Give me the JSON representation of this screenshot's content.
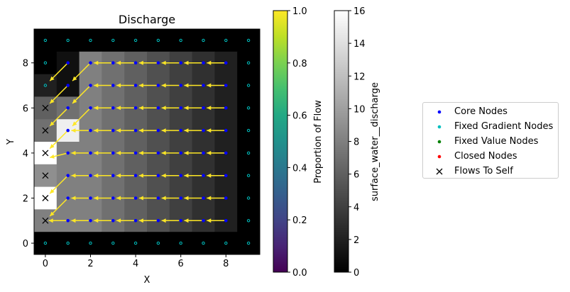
{
  "chart_data": {
    "type": "heatmap",
    "title": "Discharge",
    "xlabel": "X",
    "ylabel": "Y",
    "xticks": [
      0,
      2,
      4,
      6,
      8
    ],
    "yticks": [
      0,
      2,
      4,
      6,
      8
    ],
    "xlim": [
      -0.5,
      9.5
    ],
    "ylim": [
      -0.5,
      9.5
    ],
    "grid": false,
    "legend_position": "right",
    "nrows": 10,
    "ncols": 10,
    "grid_values_row0_is_y9": [
      [
        0,
        0,
        0,
        0,
        0,
        0,
        0,
        0,
        0,
        0
      ],
      [
        0,
        1,
        8,
        7,
        6,
        5,
        4,
        3,
        2,
        0
      ],
      [
        2,
        1,
        8,
        7,
        6,
        5,
        4,
        3,
        2,
        0
      ],
      [
        6,
        7,
        8,
        7,
        6,
        5,
        4,
        3,
        2,
        0
      ],
      [
        7,
        15,
        8,
        7,
        6,
        5,
        4,
        3,
        2,
        0
      ],
      [
        16,
        8,
        8,
        7,
        6,
        5,
        4,
        3,
        2,
        0
      ],
      [
        9,
        8,
        8,
        7,
        6,
        5,
        4,
        3,
        2,
        0
      ],
      [
        16,
        8,
        8,
        7,
        6,
        5,
        4,
        3,
        2,
        0
      ],
      [
        8,
        8,
        8,
        7,
        6,
        5,
        4,
        3,
        2,
        0
      ],
      [
        0,
        0,
        0,
        0,
        0,
        0,
        0,
        0,
        0,
        0
      ]
    ],
    "series": [
      {
        "name": "Core Nodes",
        "color": "#0000ff",
        "marker": "dot"
      },
      {
        "name": "Fixed Gradient Nodes",
        "color": "#00bfbf",
        "marker": "dot"
      },
      {
        "name": "Fixed Value Nodes",
        "color": "#008000",
        "marker": "dot"
      },
      {
        "name": "Closed Nodes",
        "color": "#ff0000",
        "marker": "dot"
      },
      {
        "name": "Flows To Self",
        "color": "#000000",
        "marker": "x"
      }
    ],
    "core_nodes": [
      [
        1,
        1
      ],
      [
        2,
        1
      ],
      [
        3,
        1
      ],
      [
        4,
        1
      ],
      [
        5,
        1
      ],
      [
        6,
        1
      ],
      [
        7,
        1
      ],
      [
        8,
        1
      ],
      [
        1,
        2
      ],
      [
        2,
        2
      ],
      [
        3,
        2
      ],
      [
        4,
        2
      ],
      [
        5,
        2
      ],
      [
        6,
        2
      ],
      [
        7,
        2
      ],
      [
        8,
        2
      ],
      [
        1,
        3
      ],
      [
        2,
        3
      ],
      [
        3,
        3
      ],
      [
        4,
        3
      ],
      [
        5,
        3
      ],
      [
        6,
        3
      ],
      [
        7,
        3
      ],
      [
        8,
        3
      ],
      [
        1,
        4
      ],
      [
        2,
        4
      ],
      [
        3,
        4
      ],
      [
        4,
        4
      ],
      [
        5,
        4
      ],
      [
        6,
        4
      ],
      [
        7,
        4
      ],
      [
        8,
        4
      ],
      [
        1,
        5
      ],
      [
        2,
        5
      ],
      [
        3,
        5
      ],
      [
        4,
        5
      ],
      [
        5,
        5
      ],
      [
        6,
        5
      ],
      [
        7,
        5
      ],
      [
        8,
        5
      ],
      [
        1,
        6
      ],
      [
        2,
        6
      ],
      [
        3,
        6
      ],
      [
        4,
        6
      ],
      [
        5,
        6
      ],
      [
        6,
        6
      ],
      [
        7,
        6
      ],
      [
        8,
        6
      ],
      [
        1,
        7
      ],
      [
        2,
        7
      ],
      [
        3,
        7
      ],
      [
        4,
        7
      ],
      [
        5,
        7
      ],
      [
        6,
        7
      ],
      [
        7,
        7
      ],
      [
        8,
        7
      ],
      [
        1,
        8
      ],
      [
        2,
        8
      ],
      [
        3,
        8
      ],
      [
        4,
        8
      ],
      [
        5,
        8
      ],
      [
        6,
        8
      ],
      [
        7,
        8
      ],
      [
        8,
        8
      ]
    ],
    "fixed_gradient_nodes": [
      [
        0,
        0
      ],
      [
        1,
        0
      ],
      [
        2,
        0
      ],
      [
        3,
        0
      ],
      [
        4,
        0
      ],
      [
        5,
        0
      ],
      [
        6,
        0
      ],
      [
        7,
        0
      ],
      [
        8,
        0
      ],
      [
        9,
        0
      ],
      [
        0,
        9
      ],
      [
        1,
        9
      ],
      [
        2,
        9
      ],
      [
        3,
        9
      ],
      [
        4,
        9
      ],
      [
        5,
        9
      ],
      [
        6,
        9
      ],
      [
        7,
        9
      ],
      [
        8,
        9
      ],
      [
        9,
        9
      ],
      [
        0,
        8
      ],
      [
        0,
        7
      ],
      [
        9,
        1
      ],
      [
        9,
        2
      ],
      [
        9,
        3
      ],
      [
        9,
        4
      ],
      [
        9,
        5
      ],
      [
        9,
        6
      ],
      [
        9,
        7
      ],
      [
        9,
        8
      ]
    ],
    "flows_to_self": [
      [
        0,
        1
      ],
      [
        0,
        2
      ],
      [
        0,
        3
      ],
      [
        0,
        4
      ],
      [
        0,
        5
      ],
      [
        0,
        6
      ]
    ],
    "flow_arrows": [
      [
        1,
        8,
        0.2,
        7.2
      ],
      [
        1,
        7,
        0.2,
        6.2
      ],
      [
        1,
        6,
        0.2,
        5.2
      ],
      [
        1,
        5,
        0.2,
        4.2
      ],
      [
        1,
        4,
        0.2,
        3.8
      ],
      [
        1,
        3,
        0.2,
        2.2
      ],
      [
        1,
        2,
        0.2,
        1.2
      ],
      [
        2,
        7,
        1.2,
        6.2
      ],
      [
        2,
        6,
        1.2,
        5.2
      ],
      [
        2,
        8,
        1.2,
        7.2
      ],
      [
        2,
        5,
        1.15,
        5
      ],
      [
        2,
        4,
        1.15,
        4
      ],
      [
        2,
        3,
        1.15,
        3
      ],
      [
        2,
        2,
        1.15,
        2
      ],
      [
        2,
        1,
        1.15,
        1
      ],
      [
        1,
        1,
        0.15,
        1
      ],
      [
        3,
        8,
        2.15,
        8
      ],
      [
        3,
        7,
        2.15,
        7
      ],
      [
        3,
        6,
        2.15,
        6
      ],
      [
        3,
        5,
        2.15,
        5
      ],
      [
        3,
        4,
        2.15,
        4
      ],
      [
        3,
        3,
        2.15,
        3
      ],
      [
        3,
        2,
        2.15,
        2
      ],
      [
        3,
        1,
        2.15,
        1
      ],
      [
        4,
        8,
        3.15,
        8
      ],
      [
        4,
        7,
        3.15,
        7
      ],
      [
        4,
        6,
        3.15,
        6
      ],
      [
        4,
        5,
        3.15,
        5
      ],
      [
        4,
        4,
        3.15,
        4
      ],
      [
        4,
        3,
        3.15,
        3
      ],
      [
        4,
        2,
        3.15,
        2
      ],
      [
        4,
        1,
        3.15,
        1
      ],
      [
        5,
        8,
        4.15,
        8
      ],
      [
        5,
        7,
        4.15,
        7
      ],
      [
        5,
        6,
        4.15,
        6
      ],
      [
        5,
        5,
        4.15,
        5
      ],
      [
        5,
        4,
        4.15,
        4
      ],
      [
        5,
        3,
        4.15,
        3
      ],
      [
        5,
        2,
        4.15,
        2
      ],
      [
        5,
        1,
        4.15,
        1
      ],
      [
        6,
        8,
        5.15,
        8
      ],
      [
        6,
        7,
        5.15,
        7
      ],
      [
        6,
        6,
        5.15,
        6
      ],
      [
        6,
        5,
        5.15,
        5
      ],
      [
        6,
        4,
        5.15,
        4
      ],
      [
        6,
        3,
        5.15,
        3
      ],
      [
        6,
        2,
        5.15,
        2
      ],
      [
        6,
        1,
        5.15,
        1
      ],
      [
        7,
        8,
        6.15,
        8
      ],
      [
        7,
        7,
        6.15,
        7
      ],
      [
        7,
        6,
        6.15,
        6
      ],
      [
        7,
        5,
        6.15,
        5
      ],
      [
        7,
        4,
        6.15,
        4
      ],
      [
        7,
        3,
        6.15,
        3
      ],
      [
        7,
        2,
        6.15,
        2
      ],
      [
        7,
        1,
        6.15,
        1
      ],
      [
        8,
        8,
        7.15,
        8
      ],
      [
        8,
        7,
        7.15,
        7
      ],
      [
        8,
        6,
        7.15,
        6
      ],
      [
        8,
        5,
        7.15,
        5
      ],
      [
        8,
        4,
        7.15,
        4
      ],
      [
        8,
        3,
        7.15,
        3
      ],
      [
        8,
        2,
        7.15,
        2
      ],
      [
        8,
        1,
        7.15,
        1
      ]
    ],
    "arrow_color": "#fde725",
    "colorbar_flow": {
      "label": "Proportion of Flow",
      "range": [
        0.0,
        1.0
      ],
      "ticks": [
        "0.0",
        "0.2",
        "0.4",
        "0.6",
        "0.8",
        "1.0"
      ],
      "colormap": "viridis"
    },
    "colorbar_discharge": {
      "label": "surface_water__discharge",
      "range": [
        0,
        16
      ],
      "ticks": [
        "0",
        "2",
        "4",
        "6",
        "8",
        "10",
        "12",
        "14",
        "16"
      ],
      "colormap": "gray"
    }
  }
}
